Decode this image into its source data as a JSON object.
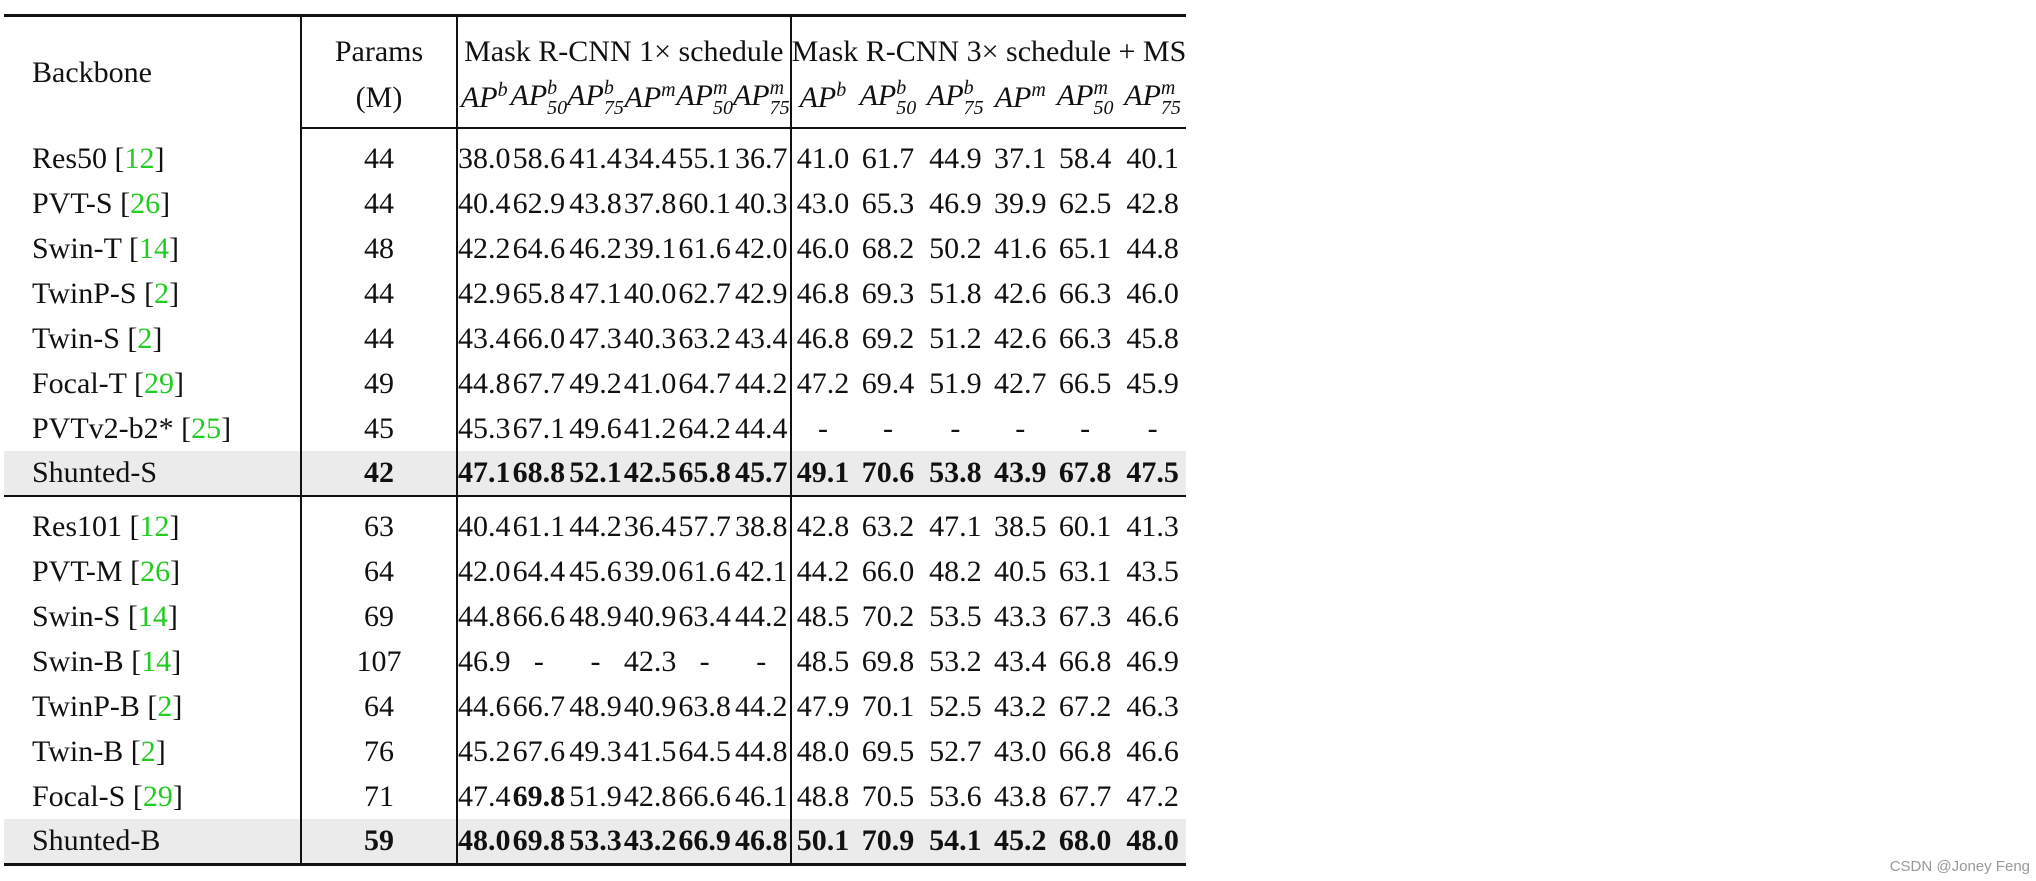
{
  "header": {
    "backbone": "Backbone",
    "params": "Params",
    "params_unit": "(M)",
    "groups": [
      "Mask R-CNN 1× schedule",
      "Mask R-CNN 3× schedule + MS"
    ],
    "metrics": [
      {
        "base": "AP",
        "sup": "b"
      },
      {
        "base": "AP",
        "sup": "b",
        "sub": "50"
      },
      {
        "base": "AP",
        "sup": "b",
        "sub": "75"
      },
      {
        "base": "AP",
        "sup": "m"
      },
      {
        "base": "AP",
        "sup": "m",
        "sub": "50"
      },
      {
        "base": "AP",
        "sup": "m",
        "sub": "75"
      }
    ]
  },
  "table": {
    "groups": [
      [
        {
          "name": "Res50",
          "cite": "[12]",
          "params": "44",
          "values": [
            "38.0",
            "58.6",
            "41.4",
            "34.4",
            "55.1",
            "36.7",
            "41.0",
            "61.7",
            "44.9",
            "37.1",
            "58.4",
            "40.1"
          ]
        },
        {
          "name": "PVT-S",
          "cite": "[26]",
          "params": "44",
          "values": [
            "40.4",
            "62.9",
            "43.8",
            "37.8",
            "60.1",
            "40.3",
            "43.0",
            "65.3",
            "46.9",
            "39.9",
            "62.5",
            "42.8"
          ]
        },
        {
          "name": "Swin-T",
          "cite": "[14]",
          "params": "48",
          "values": [
            "42.2",
            "64.6",
            "46.2",
            "39.1",
            "61.6",
            "42.0",
            "46.0",
            "68.2",
            "50.2",
            "41.6",
            "65.1",
            "44.8"
          ]
        },
        {
          "name": "TwinP-S",
          "cite": "[2]",
          "params": "44",
          "values": [
            "42.9",
            "65.8",
            "47.1",
            "40.0",
            "62.7",
            "42.9",
            "46.8",
            "69.3",
            "51.8",
            "42.6",
            "66.3",
            "46.0"
          ]
        },
        {
          "name": "Twin-S",
          "cite": "[2]",
          "params": "44",
          "values": [
            "43.4",
            "66.0",
            "47.3",
            "40.3",
            "63.2",
            "43.4",
            "46.8",
            "69.2",
            "51.2",
            "42.6",
            "66.3",
            "45.8"
          ]
        },
        {
          "name": "Focal-T",
          "cite": "[29]",
          "params": "49",
          "values": [
            "44.8",
            "67.7",
            "49.2",
            "41.0",
            "64.7",
            "44.2",
            "47.2",
            "69.4",
            "51.9",
            "42.7",
            "66.5",
            "45.9"
          ]
        },
        {
          "name": "PVTv2-b2*",
          "cite": "[25]",
          "params": "45",
          "values": [
            "45.3",
            "67.1",
            "49.6",
            "41.2",
            "64.2",
            "44.4",
            "-",
            "-",
            "-",
            "-",
            "-",
            "-"
          ]
        },
        {
          "name": "Shunted-S",
          "params": "42",
          "values": [
            "47.1",
            "68.8",
            "52.1",
            "42.5",
            "65.8",
            "45.7",
            "49.1",
            "70.6",
            "53.8",
            "43.9",
            "67.8",
            "47.5"
          ],
          "bold": true,
          "highlight": true
        }
      ],
      [
        {
          "name": "Res101",
          "cite": "[12]",
          "params": "63",
          "values": [
            "40.4",
            "61.1",
            "44.2",
            "36.4",
            "57.7",
            "38.8",
            "42.8",
            "63.2",
            "47.1",
            "38.5",
            "60.1",
            "41.3"
          ]
        },
        {
          "name": "PVT-M",
          "cite": "[26]",
          "params": "64",
          "values": [
            "42.0",
            "64.4",
            "45.6",
            "39.0",
            "61.6",
            "42.1",
            "44.2",
            "66.0",
            "48.2",
            "40.5",
            "63.1",
            "43.5"
          ]
        },
        {
          "name": "Swin-S",
          "cite": "[14]",
          "params": "69",
          "values": [
            "44.8",
            "66.6",
            "48.9",
            "40.9",
            "63.4",
            "44.2",
            "48.5",
            "70.2",
            "53.5",
            "43.3",
            "67.3",
            "46.6"
          ]
        },
        {
          "name": "Swin-B",
          "cite": "[14]",
          "params": "107",
          "values": [
            "46.9",
            "-",
            "-",
            "42.3",
            "-",
            "-",
            "48.5",
            "69.8",
            "53.2",
            "43.4",
            "66.8",
            "46.9"
          ]
        },
        {
          "name": "TwinP-B",
          "cite": "[2]",
          "params": "64",
          "values": [
            "44.6",
            "66.7",
            "48.9",
            "40.9",
            "63.8",
            "44.2",
            "47.9",
            "70.1",
            "52.5",
            "43.2",
            "67.2",
            "46.3"
          ]
        },
        {
          "name": "Twin-B",
          "cite": "[2]",
          "params": "76",
          "values": [
            "45.2",
            "67.6",
            "49.3",
            "41.5",
            "64.5",
            "44.8",
            "48.0",
            "69.5",
            "52.7",
            "43.0",
            "66.8",
            "46.6"
          ]
        },
        {
          "name": "Focal-S",
          "cite": "[29]",
          "params": "71",
          "values": [
            "47.4",
            "69.8",
            "51.9",
            "42.8",
            "66.6",
            "46.1",
            "48.8",
            "70.5",
            "53.6",
            "43.8",
            "67.7",
            "47.2"
          ],
          "bold_cells": [
            1
          ]
        },
        {
          "name": "Shunted-B",
          "params": "59",
          "values": [
            "48.0",
            "69.8",
            "53.3",
            "43.2",
            "66.9",
            "46.8",
            "50.1",
            "70.9",
            "54.1",
            "45.2",
            "68.0",
            "48.0"
          ],
          "bold": true,
          "highlight": true
        }
      ]
    ]
  },
  "watermark": "CSDN @Joney Feng"
}
